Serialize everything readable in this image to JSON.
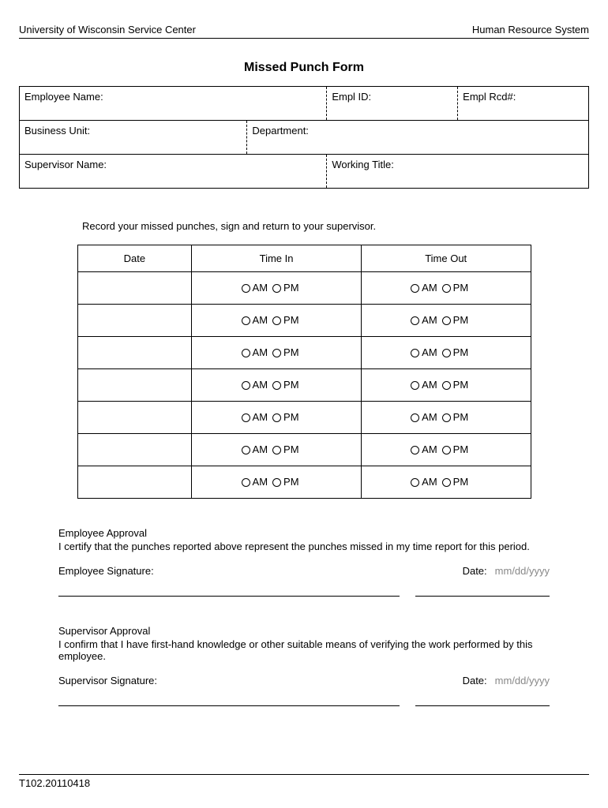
{
  "header": {
    "left": "University of Wisconsin Service Center",
    "right": "Human Resource System"
  },
  "title": "Missed Punch Form",
  "info": {
    "employee_name": "Employee Name:",
    "empl_id": "Empl ID:",
    "empl_rcd": "Empl Rcd#:",
    "business_unit": "Business Unit:",
    "department": "Department:",
    "supervisor_name": "Supervisor Name:",
    "working_title": "Working Title:"
  },
  "instruction": "Record your missed punches, sign and return to your supervisor.",
  "punch": {
    "headers": {
      "date": "Date",
      "time_in": "Time In",
      "time_out": "Time Out"
    },
    "row_count": 7,
    "am": "AM",
    "pm": "PM"
  },
  "employee_approval": {
    "title": "Employee Approval",
    "cert": "I certify that the punches reported above represent the punches missed in my time report for this period.",
    "sig_label": "Employee Signature:",
    "date_label": "Date:",
    "date_placeholder": "mm/dd/yyyy"
  },
  "supervisor_approval": {
    "title": "Supervisor Approval",
    "cert": "I confirm that I have first-hand knowledge or other suitable means of verifying the work performed by this employee.",
    "sig_label": "Supervisor Signature:",
    "date_label": "Date:",
    "date_placeholder": "mm/dd/yyyy"
  },
  "footer": "T102.20110418",
  "style": {
    "border_color": "#000000",
    "placeholder_color": "#888888",
    "background_color": "#ffffff"
  }
}
